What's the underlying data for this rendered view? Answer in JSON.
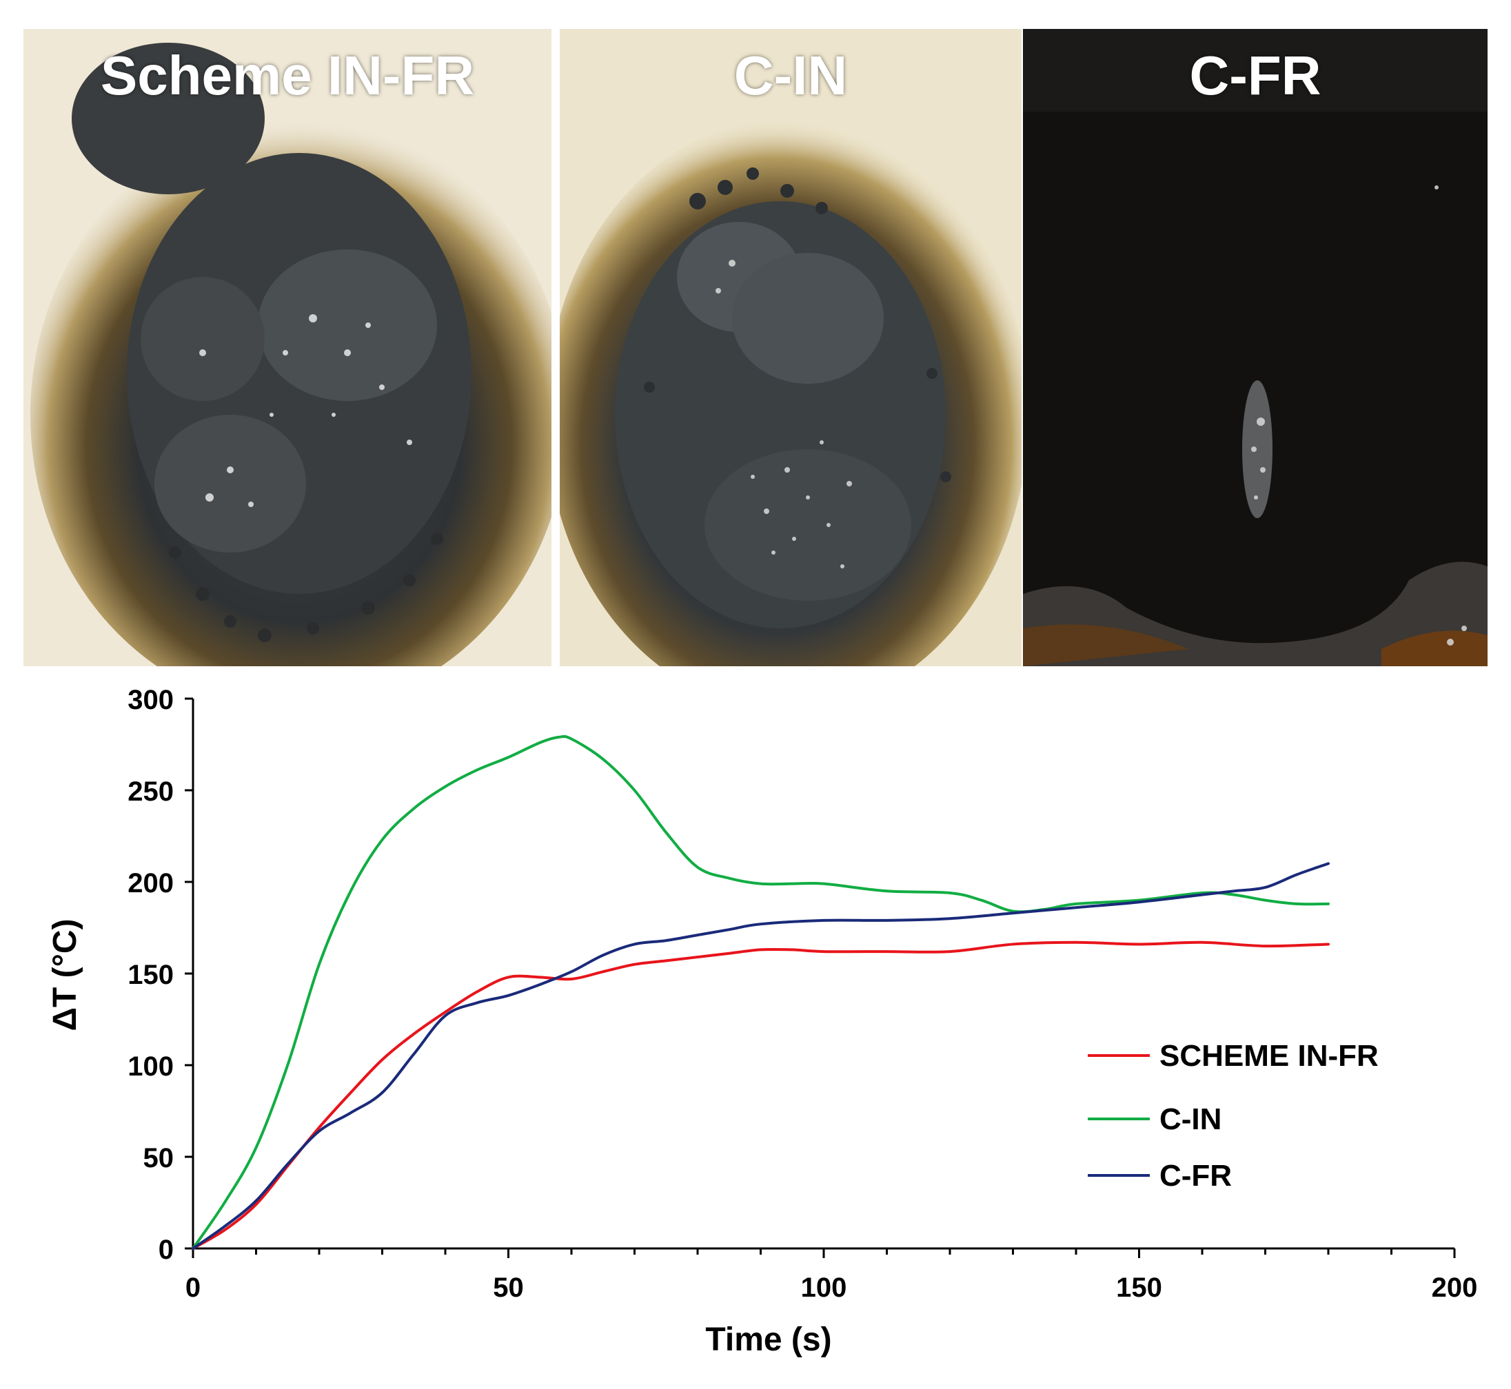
{
  "photos": [
    {
      "label": "Scheme IN-FR"
    },
    {
      "label": "C-IN"
    },
    {
      "label": "C-FR"
    }
  ],
  "colors": {
    "scheme_in_fr": "#e8141b",
    "c_in": "#11ad43",
    "c_fr": "#1a2a7a"
  },
  "chart_data": {
    "type": "line",
    "title": "",
    "xlabel": "Time (s)",
    "ylabel": "ΔT (°C)",
    "xlim": [
      0,
      200
    ],
    "ylim": [
      0,
      300
    ],
    "x_ticks": [
      0,
      50,
      100,
      150,
      200
    ],
    "y_ticks": [
      0,
      50,
      100,
      150,
      200,
      250,
      300
    ],
    "x_minor_step": 10,
    "grid": false,
    "legend_position": "right",
    "series": [
      {
        "name": "SCHEME IN-FR",
        "color": "#e8141b",
        "x": [
          0,
          5,
          10,
          15,
          20,
          25,
          30,
          35,
          40,
          45,
          50,
          55,
          60,
          65,
          70,
          75,
          80,
          85,
          90,
          95,
          100,
          110,
          120,
          130,
          140,
          150,
          160,
          170,
          180
        ],
        "y": [
          0,
          10,
          24,
          45,
          66,
          85,
          103,
          117,
          129,
          140,
          148,
          148,
          147,
          151,
          155,
          157,
          159,
          161,
          163,
          163,
          162,
          162,
          162,
          166,
          167,
          166,
          167,
          165,
          166
        ]
      },
      {
        "name": "C-IN",
        "color": "#11ad43",
        "x": [
          0,
          5,
          10,
          15,
          20,
          25,
          30,
          35,
          40,
          45,
          50,
          55,
          58,
          60,
          65,
          70,
          75,
          80,
          85,
          90,
          95,
          100,
          110,
          120,
          125,
          130,
          135,
          140,
          150,
          160,
          165,
          170,
          175,
          180
        ],
        "y": [
          0,
          25,
          55,
          100,
          155,
          195,
          223,
          240,
          252,
          261,
          268,
          276,
          279,
          278,
          267,
          250,
          227,
          208,
          202,
          199,
          199,
          199,
          195,
          194,
          190,
          184,
          185,
          188,
          190,
          194,
          193,
          190,
          188,
          188
        ]
      },
      {
        "name": "C-FR",
        "color": "#1a2a7a",
        "x": [
          0,
          5,
          10,
          15,
          20,
          25,
          30,
          35,
          40,
          45,
          50,
          55,
          60,
          65,
          70,
          75,
          80,
          85,
          90,
          100,
          110,
          120,
          130,
          140,
          150,
          160,
          165,
          170,
          175,
          180
        ],
        "y": [
          0,
          12,
          26,
          46,
          64,
          74,
          85,
          106,
          127,
          134,
          138,
          144,
          151,
          160,
          166,
          168,
          171,
          174,
          177,
          179,
          179,
          180,
          183,
          186,
          189,
          193,
          195,
          197,
          204,
          210
        ]
      }
    ]
  }
}
